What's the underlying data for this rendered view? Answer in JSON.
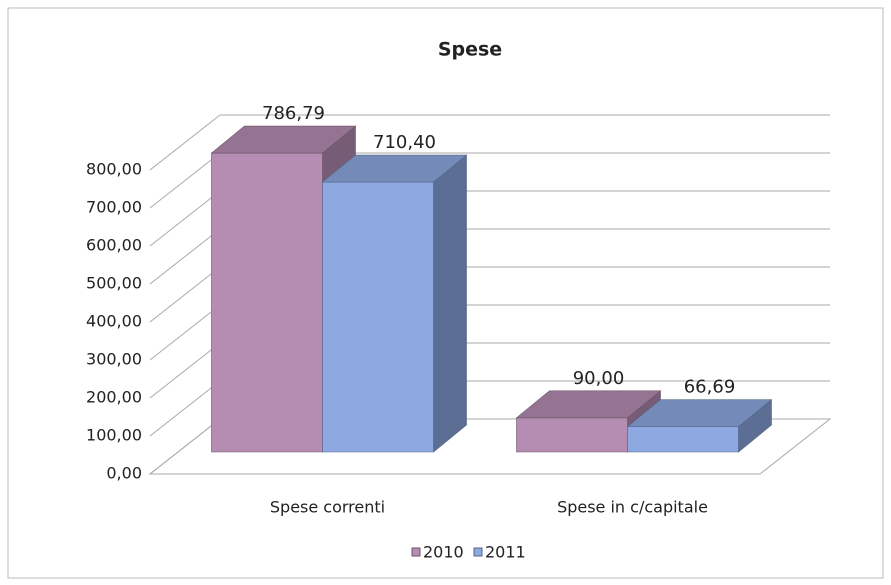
{
  "chart_data": {
    "type": "bar3d",
    "title": "Spese",
    "categories": [
      "Spese correnti",
      "Spese in c/capitale"
    ],
    "series": [
      {
        "name": "2010",
        "color": "#b58db2",
        "values": [
          786.79,
          90.0
        ],
        "value_labels": [
          "786,79",
          "90,00"
        ]
      },
      {
        "name": "2011",
        "color": "#8ea9e2",
        "values": [
          710.4,
          66.69
        ],
        "value_labels": [
          "710,40",
          "66,69"
        ]
      }
    ],
    "ylim": [
      0,
      800
    ],
    "yticks": [
      {
        "value": 0,
        "label": "0,00"
      },
      {
        "value": 100,
        "label": "100,00"
      },
      {
        "value": 200,
        "label": "200,00"
      },
      {
        "value": 300,
        "label": "300,00"
      },
      {
        "value": 400,
        "label": "400,00"
      },
      {
        "value": 500,
        "label": "500,00"
      },
      {
        "value": 600,
        "label": "600,00"
      },
      {
        "value": 700,
        "label": "700,00"
      },
      {
        "value": 800,
        "label": "800,00"
      }
    ],
    "grid": true,
    "legend": "bottom"
  }
}
